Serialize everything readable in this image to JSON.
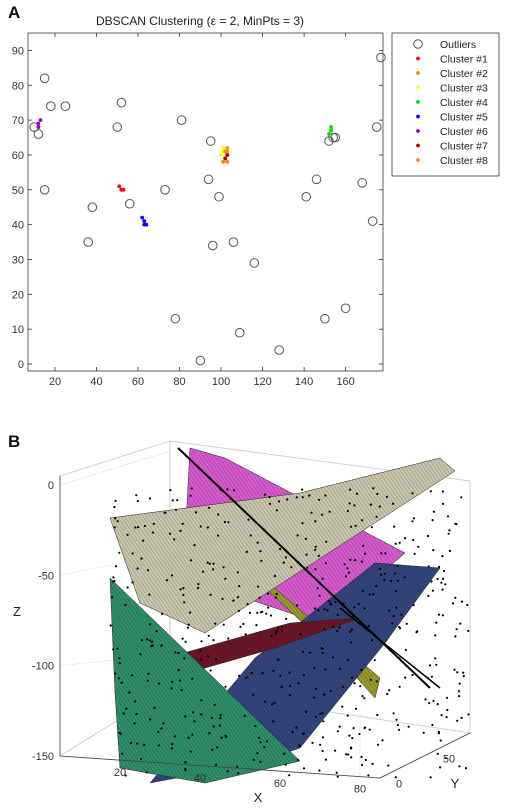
{
  "panel_a_label": "A",
  "panel_b_label": "B",
  "chart_data": [
    {
      "type": "scatter",
      "title": "DBSCAN Clustering (ε = 2, MinPts = 3)",
      "xlim": [
        7,
        178
      ],
      "ylim": [
        -2,
        95
      ],
      "x_ticks": [
        20,
        40,
        60,
        80,
        100,
        120,
        140,
        160
      ],
      "y_ticks": [
        0,
        10,
        20,
        30,
        40,
        50,
        60,
        70,
        80,
        90
      ],
      "grid": false,
      "legend_position": "outside-right",
      "legend": [
        "Outliers",
        "Cluster #1",
        "Cluster #2",
        "Cluster #3",
        "Cluster #4",
        "Cluster #5",
        "Cluster #6",
        "Cluster #7",
        "Cluster #8"
      ],
      "series": [
        {
          "name": "Outliers",
          "marker": "open-circle",
          "color": "#555555",
          "points": [
            [
              10,
              68
            ],
            [
              12,
              66
            ],
            [
              15,
              82
            ],
            [
              15,
              50
            ],
            [
              18,
              74
            ],
            [
              25,
              74
            ],
            [
              38,
              45
            ],
            [
              36,
              35
            ],
            [
              50,
              68
            ],
            [
              52,
              75
            ],
            [
              56,
              46
            ],
            [
              73,
              50
            ],
            [
              78,
              13
            ],
            [
              81,
              70
            ],
            [
              90,
              1
            ],
            [
              94,
              53
            ],
            [
              95,
              64
            ],
            [
              96,
              34
            ],
            [
              99,
              48
            ],
            [
              106,
              35
            ],
            [
              109,
              9
            ],
            [
              116,
              29
            ],
            [
              128,
              4
            ],
            [
              141,
              48
            ],
            [
              146,
              53
            ],
            [
              150,
              13
            ],
            [
              152,
              64
            ],
            [
              154,
              65
            ],
            [
              155,
              65
            ],
            [
              160,
              16
            ],
            [
              168,
              52
            ],
            [
              173,
              41
            ],
            [
              175,
              68
            ],
            [
              177,
              88
            ]
          ]
        },
        {
          "name": "Cluster #1",
          "marker": "dot",
          "color": "#ff0000",
          "points": [
            [
              51,
              51
            ],
            [
              52,
              50
            ],
            [
              53,
              50
            ]
          ]
        },
        {
          "name": "Cluster #2",
          "marker": "dot",
          "color": "#ff7f00",
          "points": [
            [
              101,
              58
            ],
            [
              102,
              59
            ],
            [
              103,
              58
            ],
            [
              103,
              60
            ]
          ]
        },
        {
          "name": "Cluster #3",
          "marker": "dot",
          "color": "#ffff00",
          "points": [
            [
              100,
              60
            ],
            [
              101,
              61
            ],
            [
              101,
              62
            ]
          ]
        },
        {
          "name": "Cluster #4",
          "marker": "dot",
          "color": "#00e000",
          "points": [
            [
              152,
              66
            ],
            [
              153,
              67
            ],
            [
              153,
              68
            ]
          ]
        },
        {
          "name": "Cluster #5",
          "marker": "dot",
          "color": "#0000ff",
          "points": [
            [
              62,
              42
            ],
            [
              63,
              41
            ],
            [
              63,
              40
            ],
            [
              64,
              40
            ]
          ]
        },
        {
          "name": "Cluster #6",
          "marker": "dot",
          "color": "#9400d3",
          "points": [
            [
              12,
              69
            ],
            [
              13,
              70
            ],
            [
              12,
              68
            ]
          ]
        },
        {
          "name": "Cluster #7",
          "marker": "dot",
          "color": "#b00000",
          "points": [
            [
              102,
              59
            ],
            [
              103,
              60
            ]
          ]
        },
        {
          "name": "Cluster #8",
          "marker": "dot",
          "color": "#ff8c00",
          "points": [
            [
              103,
              61
            ],
            [
              103,
              62
            ],
            [
              102,
              61
            ]
          ]
        }
      ]
    },
    {
      "type": "scatter",
      "projection": "3d",
      "title": "",
      "xlabel": "X",
      "ylabel": "Y",
      "zlabel": "Z",
      "x_ticks": [
        20,
        40,
        60,
        80
      ],
      "y_ticks": [
        0,
        50
      ],
      "z_ticks": [
        0,
        -50,
        -100,
        -150
      ],
      "xlim": [
        5,
        85
      ],
      "ylim": [
        -5,
        85
      ],
      "zlim": [
        -150,
        5
      ],
      "grid": true,
      "planes": [
        {
          "name": "plane-grey",
          "color": "#c9c6ad"
        },
        {
          "name": "plane-magenta",
          "color": "#d85ad0"
        },
        {
          "name": "plane-olive",
          "color": "#9a9a2c"
        },
        {
          "name": "plane-navy",
          "color": "#34457e"
        },
        {
          "name": "plane-green",
          "color": "#2f8e6a"
        },
        {
          "name": "plane-maroon",
          "color": "#6c1628"
        }
      ],
      "point_color": "#000000",
      "line_color": "#000000"
    }
  ]
}
